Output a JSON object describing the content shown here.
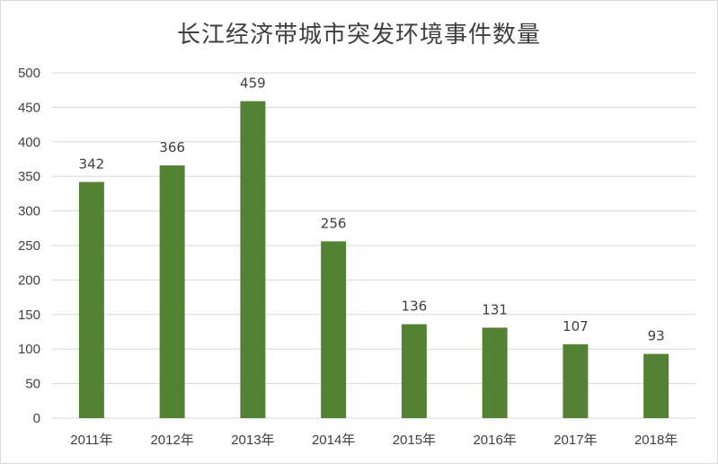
{
  "chart_data": {
    "type": "bar",
    "title": "长江经济带城市突发环境事件数量",
    "categories": [
      "2011年",
      "2012年",
      "2013年",
      "2014年",
      "2015年",
      "2016年",
      "2017年",
      "2018年"
    ],
    "values": [
      342,
      366,
      459,
      256,
      136,
      131,
      107,
      93
    ],
    "xlabel": "",
    "ylabel": "",
    "ylim": [
      0,
      500
    ],
    "yticks": [
      "0",
      "50",
      "100",
      "150",
      "200",
      "250",
      "300",
      "350",
      "400",
      "450",
      "500"
    ],
    "grid": true,
    "legend": "none",
    "bar_color": "#548235",
    "grid_color": "#d9d9d9",
    "text_color": "#404040"
  }
}
